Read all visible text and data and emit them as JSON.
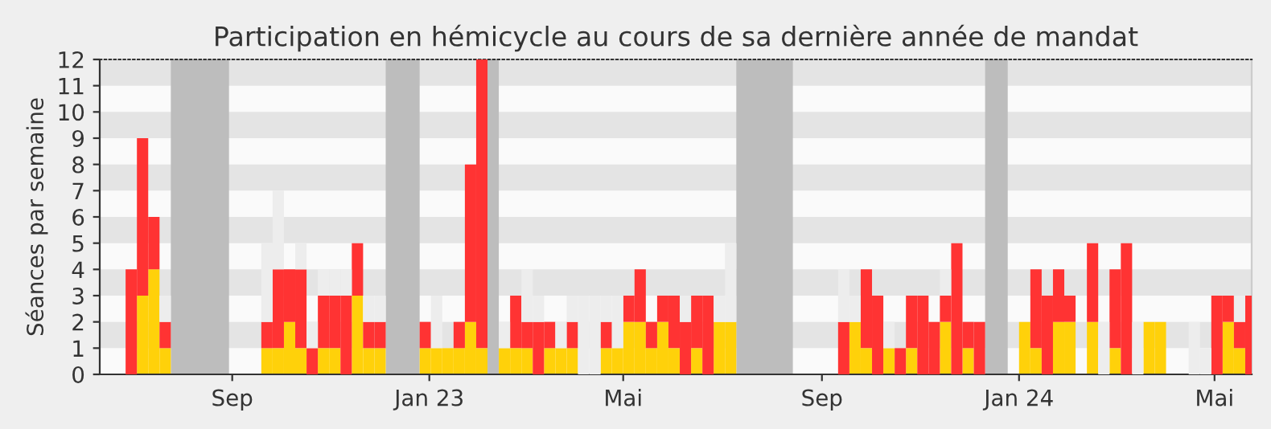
{
  "chart_data": {
    "type": "bar",
    "stacked": true,
    "title": "Participation en hémicycle au cours de sa dernière année de mandat",
    "ylabel": "Séances par semaine",
    "x": [
      "2022-06-27",
      "2022-07-04",
      "2022-07-11",
      "2022-07-18",
      "2022-07-25",
      "2022-08-01",
      "2022-08-08",
      "2022-08-15",
      "2022-08-22",
      "2022-08-29",
      "2022-09-05",
      "2022-09-12",
      "2022-09-19",
      "2022-09-26",
      "2022-10-03",
      "2022-10-10",
      "2022-10-17",
      "2022-10-24",
      "2022-10-31",
      "2022-11-07",
      "2022-11-14",
      "2022-11-21",
      "2022-11-28",
      "2022-12-05",
      "2022-12-12",
      "2022-12-19",
      "2022-12-26",
      "2023-01-02",
      "2023-01-09",
      "2023-01-16",
      "2023-01-23",
      "2023-01-30",
      "2023-02-06",
      "2023-02-13",
      "2023-02-20",
      "2023-02-27",
      "2023-03-06",
      "2023-03-13",
      "2023-03-20",
      "2023-03-27",
      "2023-04-03",
      "2023-04-10",
      "2023-04-17",
      "2023-04-24",
      "2023-05-01",
      "2023-05-08",
      "2023-05-15",
      "2023-05-22",
      "2023-05-29",
      "2023-06-05",
      "2023-06-12",
      "2023-06-19",
      "2023-06-26",
      "2023-07-03",
      "2023-07-10",
      "2023-07-17",
      "2023-07-24",
      "2023-07-31",
      "2023-08-07",
      "2023-08-14",
      "2023-08-21",
      "2023-08-28",
      "2023-09-04",
      "2023-09-11",
      "2023-09-18",
      "2023-09-25",
      "2023-10-02",
      "2023-10-09",
      "2023-10-16",
      "2023-10-23",
      "2023-10-30",
      "2023-11-06",
      "2023-11-13",
      "2023-11-20",
      "2023-11-27",
      "2023-12-04",
      "2023-12-11",
      "2023-12-18",
      "2023-12-25",
      "2024-01-01",
      "2024-01-08",
      "2024-01-15",
      "2024-01-22",
      "2024-01-29",
      "2024-02-05",
      "2024-02-12",
      "2024-02-19",
      "2024-02-26",
      "2024-03-04",
      "2024-03-11",
      "2024-03-18",
      "2024-03-25",
      "2024-04-01",
      "2024-04-08",
      "2024-04-15",
      "2024-04-22",
      "2024-04-29",
      "2024-05-06",
      "2024-05-13",
      "2024-05-20"
    ],
    "series": [
      {
        "color": "#ffd10a",
        "values": [
          0,
          3,
          4,
          1,
          0,
          0,
          0,
          0,
          0,
          0,
          0,
          0,
          1,
          1,
          2,
          1,
          0,
          1,
          1,
          0,
          3,
          1,
          1,
          0,
          0,
          0,
          1,
          1,
          1,
          1,
          2,
          1,
          0,
          1,
          1,
          1,
          0,
          1,
          1,
          1,
          0,
          0,
          1,
          1,
          2,
          2,
          1,
          2,
          1,
          0,
          1,
          0,
          2,
          2,
          0,
          0,
          0,
          0,
          0,
          0,
          0,
          0,
          0,
          0,
          2,
          1,
          0,
          1,
          0,
          1,
          0,
          0,
          2,
          0,
          1,
          0,
          0,
          0,
          0,
          2,
          1,
          0,
          2,
          2,
          0,
          2,
          0,
          1,
          0,
          0,
          2,
          2,
          0,
          0,
          0,
          0,
          0,
          2,
          1,
          0
        ]
      },
      {
        "color": "#ff3333",
        "values": [
          4,
          6,
          2,
          1,
          0,
          0,
          0,
          0,
          0,
          0,
          0,
          0,
          1,
          3,
          2,
          3,
          1,
          2,
          2,
          3,
          2,
          1,
          1,
          0,
          0,
          0,
          1,
          0,
          0,
          1,
          6,
          11,
          0,
          0,
          2,
          1,
          2,
          1,
          0,
          1,
          0,
          0,
          1,
          0,
          1,
          2,
          1,
          1,
          2,
          2,
          2,
          3,
          0,
          0,
          0,
          0,
          0,
          0,
          0,
          0,
          0,
          0,
          0,
          2,
          0,
          3,
          3,
          0,
          1,
          2,
          3,
          2,
          1,
          5,
          1,
          2,
          0,
          0,
          0,
          0,
          3,
          3,
          2,
          1,
          0,
          3,
          0,
          3,
          5,
          0,
          0,
          0,
          0,
          0,
          0,
          0,
          3,
          1,
          1,
          3
        ]
      },
      {
        "color": "#ededed",
        "values": [
          0,
          0,
          0,
          1,
          0,
          0,
          0,
          0,
          0,
          0,
          0,
          0,
          3,
          3,
          0,
          1,
          1,
          1,
          1,
          1,
          0,
          1,
          1,
          0,
          0,
          0,
          0,
          2,
          0,
          0,
          0,
          0,
          0,
          1,
          0,
          2,
          1,
          0,
          1,
          1,
          3,
          3,
          1,
          2,
          0,
          0,
          0,
          0,
          0,
          1,
          0,
          0,
          1,
          3,
          0,
          0,
          0,
          0,
          0,
          0,
          0,
          0,
          0,
          2,
          1,
          0,
          0,
          1,
          0,
          0,
          0,
          0,
          1,
          0,
          0,
          0,
          0,
          0,
          0,
          0,
          0,
          0,
          0,
          0,
          0,
          0,
          2,
          0,
          0,
          2,
          0,
          0,
          0,
          0,
          2,
          1,
          0,
          0,
          1,
          0
        ]
      }
    ],
    "bands": [
      {
        "axis": "x",
        "from": "2022-07-25",
        "to": "2022-08-30",
        "color": "#bdbdbd"
      },
      {
        "axis": "x",
        "from": "2022-12-05",
        "to": "2022-12-26",
        "color": "#bdbdbd"
      },
      {
        "axis": "x",
        "from": "2023-02-06",
        "to": "2023-02-13",
        "color": "#bdbdbd"
      },
      {
        "axis": "x",
        "from": "2023-07-10",
        "to": "2023-08-14",
        "color": "#bdbdbd"
      },
      {
        "axis": "x",
        "from": "2023-12-11",
        "to": "2023-12-25",
        "color": "#bdbdbd"
      }
    ],
    "xlim": [
      "2022-06-11",
      "2024-05-24"
    ],
    "xticks": [
      {
        "value": "2022-09-01",
        "label": "Sep"
      },
      {
        "value": "2023-01-01",
        "label": "Jan 23"
      },
      {
        "value": "2023-05-01",
        "label": "Mai"
      },
      {
        "value": "2023-09-01",
        "label": "Sep"
      },
      {
        "value": "2024-01-01",
        "label": "Jan 24"
      },
      {
        "value": "2024-05-01",
        "label": "Mai"
      }
    ],
    "ylim": [
      0,
      12
    ],
    "yticks": [
      0,
      1,
      2,
      3,
      4,
      5,
      6,
      7,
      8,
      9,
      10,
      11,
      12
    ]
  }
}
